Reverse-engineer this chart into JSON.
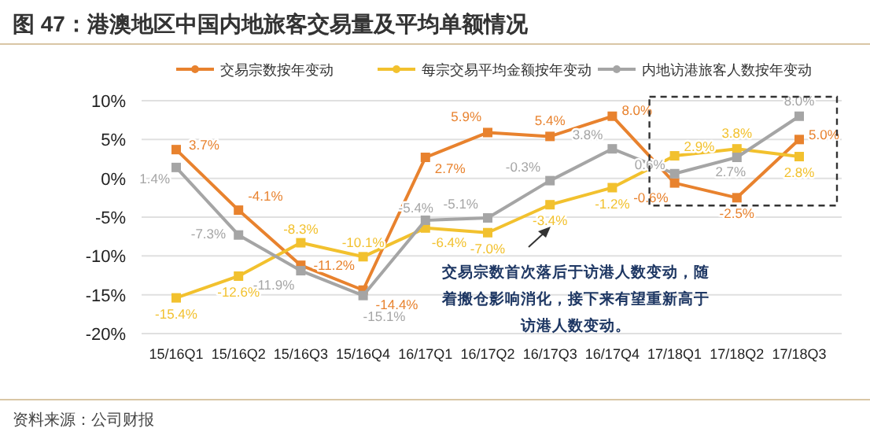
{
  "chart_data": {
    "type": "line",
    "title": "图 47：港澳地区中国内地旅客交易量及平均单额情况",
    "categories": [
      "15/16Q1",
      "15/16Q2",
      "15/16Q3",
      "15/16Q4",
      "16/17Q1",
      "16/17Q2",
      "16/17Q3",
      "16/17Q4",
      "17/18Q1",
      "17/18Q2",
      "17/18Q3"
    ],
    "series": [
      {
        "name": "交易宗数按年变动",
        "color": "#e8822e",
        "values": [
          3.7,
          -4.1,
          -11.2,
          -14.4,
          2.7,
          5.9,
          5.4,
          8.0,
          -0.6,
          -2.5,
          5.0
        ],
        "value_labels": [
          "3.7%",
          "-4.1%",
          "-11.2%",
          "-14.4%",
          "2.7%",
          "5.9%",
          "5.4%",
          "8.0%",
          "-0.6%",
          "-2.5%",
          "5.0%"
        ]
      },
      {
        "name": "每宗交易平均金额按年变动",
        "color": "#f2c12e",
        "values": [
          -15.4,
          -12.6,
          -8.3,
          -10.1,
          -6.4,
          -7.0,
          -3.4,
          -1.2,
          2.9,
          3.8,
          2.8
        ],
        "value_labels": [
          "-15.4%",
          "-12.6%",
          "-8.3%",
          "-10.1%",
          "-6.4%",
          "-7.0%",
          "-3.4%",
          "-1.2%",
          "2.9%",
          "3.8%",
          "2.8%"
        ]
      },
      {
        "name": "内地访港旅客人数按年变动",
        "color": "#a5a5a5",
        "values": [
          1.4,
          -7.3,
          -11.9,
          -15.1,
          -5.4,
          -5.1,
          -0.3,
          3.8,
          0.6,
          2.7,
          8.0
        ],
        "value_labels": [
          "1.4%",
          "-7.3%",
          "-11.9%",
          "-15.1%",
          "-5.4%",
          "-5.1%",
          "-0.3%",
          "3.8%",
          "0.6%",
          "2.7%",
          "8.0%"
        ]
      }
    ],
    "ylim": [
      -20,
      10
    ],
    "yticks": [
      {
        "value": -20,
        "label": "-20%"
      },
      {
        "value": -15,
        "label": "-15%"
      },
      {
        "value": -10,
        "label": "-10%"
      },
      {
        "value": -5,
        "label": "-5%"
      },
      {
        "value": 0,
        "label": "0%"
      },
      {
        "value": 5,
        "label": "5%"
      },
      {
        "value": 10,
        "label": "10%"
      }
    ],
    "grid": "y",
    "legend": "top",
    "marker": "square",
    "annotations": [
      "交易宗数首次落后于访港人数变动，随着搬仓影响消化，接下来有望重新高于访港人数变动。",
      "资料来源：公司财报"
    ]
  }
}
